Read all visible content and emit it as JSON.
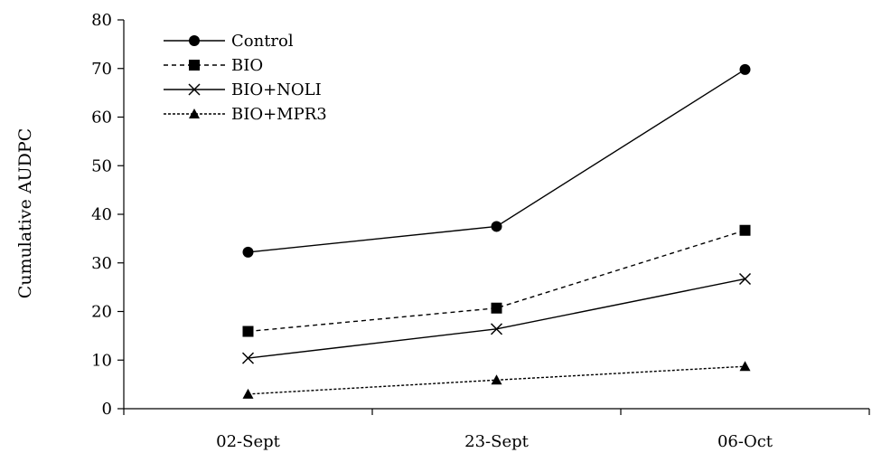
{
  "chart_data": {
    "type": "line",
    "title": "",
    "xlabel": "",
    "ylabel": "Cumulative AUDPC",
    "categories": [
      "02-Sept",
      "23-Sept",
      "06-Oct"
    ],
    "ylim": [
      0,
      80
    ],
    "yticks": [
      0,
      10,
      20,
      30,
      40,
      50,
      60,
      70,
      80
    ],
    "grid": false,
    "legend_position": "top-left",
    "series": [
      {
        "name": "Control",
        "values": [
          32.2,
          37.5,
          69.8
        ],
        "marker": "circle",
        "dash": "solid"
      },
      {
        "name": "BIO",
        "values": [
          15.9,
          20.7,
          36.7
        ],
        "marker": "square",
        "dash": "dashed"
      },
      {
        "name": "BIO+NOLI",
        "values": [
          10.4,
          16.4,
          26.7
        ],
        "marker": "x",
        "dash": "solid"
      },
      {
        "name": "BIO+MPR3",
        "values": [
          3.0,
          5.9,
          8.7
        ],
        "marker": "triangle",
        "dash": "dotted"
      }
    ]
  }
}
